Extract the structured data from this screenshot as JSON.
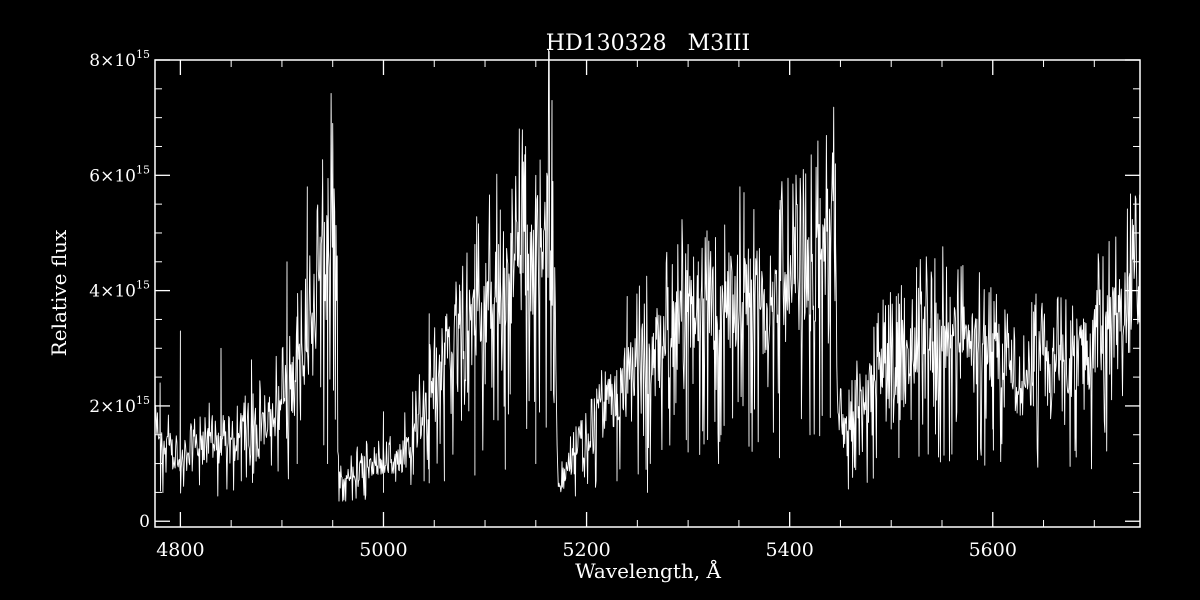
{
  "chart_data": {
    "type": "line",
    "title": "HD130328   M3III",
    "xlabel": "Wavelength, Å",
    "ylabel": "Relative flux",
    "xlim": [
      4775,
      5745
    ],
    "ylim": [
      -100000000000000.0,
      8000000000000000.0
    ],
    "xticks": [
      {
        "value": 4800,
        "label": "4800"
      },
      {
        "value": 5000,
        "label": "5000"
      },
      {
        "value": 5200,
        "label": "5200"
      },
      {
        "value": 5400,
        "label": "5400"
      },
      {
        "value": 5600,
        "label": "5600"
      }
    ],
    "yticks": [
      {
        "value": 0,
        "mant": "0",
        "exp": ""
      },
      {
        "value": 2000000000000000.0,
        "mant": "2×10",
        "exp": "15"
      },
      {
        "value": 4000000000000000.0,
        "mant": "4×10",
        "exp": "15"
      },
      {
        "value": 6000000000000000.0,
        "mant": "6×10",
        "exp": "15"
      },
      {
        "value": 8000000000000000.0,
        "mant": "8×10",
        "exp": "15"
      }
    ],
    "grid": false,
    "color": "#ffffff",
    "background": "#000000",
    "series": [
      {
        "envelope": [
          [
            4775,
            1300000000000000.0
          ],
          [
            4790,
            1250000000000000.0
          ],
          [
            4800,
            850000000000000.0
          ],
          [
            4815,
            1200000000000000.0
          ],
          [
            4830,
            1350000000000000.0
          ],
          [
            4845,
            1150000000000000.0
          ],
          [
            4860,
            1400000000000000.0
          ],
          [
            4880,
            1600000000000000.0
          ],
          [
            4900,
            2000000000000000.0
          ],
          [
            4915,
            2600000000000000.0
          ],
          [
            4930,
            3200000000000000.0
          ],
          [
            4945,
            4800000000000000.0
          ],
          [
            4953,
            5500000000000000.0
          ],
          [
            4956,
            600000000000000.0
          ],
          [
            4970,
            800000000000000.0
          ],
          [
            4985,
            950000000000000.0
          ],
          [
            5000,
            900000000000000.0
          ],
          [
            5015,
            1100000000000000.0
          ],
          [
            5030,
            1500000000000000.0
          ],
          [
            5050,
            2200000000000000.0
          ],
          [
            5070,
            2900000000000000.0
          ],
          [
            5090,
            3400000000000000.0
          ],
          [
            5110,
            4000000000000000.0
          ],
          [
            5130,
            4400000000000000.0
          ],
          [
            5150,
            4600000000000000.0
          ],
          [
            5160,
            5200000000000000.0
          ],
          [
            5165,
            5600000000000000.0
          ],
          [
            5168,
            4300000000000000.0
          ],
          [
            5172,
            500000000000000.0
          ],
          [
            5185,
            1100000000000000.0
          ],
          [
            5200,
            1300000000000000.0
          ],
          [
            5220,
            2000000000000000.0
          ],
          [
            5240,
            2500000000000000.0
          ],
          [
            5260,
            2800000000000000.0
          ],
          [
            5280,
            3100000000000000.0
          ],
          [
            5300,
            3600000000000000.0
          ],
          [
            5320,
            3300000000000000.0
          ],
          [
            5340,
            3600000000000000.0
          ],
          [
            5355,
            3900000000000000.0
          ],
          [
            5370,
            3500000000000000.0
          ],
          [
            5390,
            3800000000000000.0
          ],
          [
            5410,
            3900000000000000.0
          ],
          [
            5425,
            4200000000000000.0
          ],
          [
            5440,
            4500000000000000.0
          ],
          [
            5445,
            5000000000000000.0
          ],
          [
            5448,
            1600000000000000.0
          ],
          [
            5460,
            1700000000000000.0
          ],
          [
            5480,
            2300000000000000.0
          ],
          [
            5500,
            2600000000000000.0
          ],
          [
            5520,
            2900000000000000.0
          ],
          [
            5540,
            3200000000000000.0
          ],
          [
            5560,
            3200000000000000.0
          ],
          [
            5580,
            3000000000000000.0
          ],
          [
            5595,
            2800000000000000.0
          ],
          [
            5610,
            2400000000000000.0
          ],
          [
            5630,
            2300000000000000.0
          ],
          [
            5650,
            2700000000000000.0
          ],
          [
            5670,
            2500000000000000.0
          ],
          [
            5690,
            2900000000000000.0
          ],
          [
            5710,
            3200000000000000.0
          ],
          [
            5730,
            3600000000000000.0
          ],
          [
            5745,
            3900000000000000.0
          ]
        ],
        "spikes": [
          [
            4780,
            2400000000000000.0
          ],
          [
            4800,
            3300000000000000.0
          ],
          [
            4840,
            3000000000000000.0
          ],
          [
            4870,
            2800000000000000.0
          ],
          [
            4905,
            4500000000000000.0
          ],
          [
            4925,
            5800000000000000.0
          ],
          [
            4940,
            6000000000000000.0
          ],
          [
            4950,
            6900000000000000.0
          ],
          [
            5000,
            1900000000000000.0
          ],
          [
            5045,
            3600000000000000.0
          ],
          [
            5075,
            4100000000000000.0
          ],
          [
            5090,
            4800000000000000.0
          ],
          [
            5115,
            5400000000000000.0
          ],
          [
            5130,
            5700000000000000.0
          ],
          [
            5140,
            6500000000000000.0
          ],
          [
            5150,
            6000000000000000.0
          ],
          [
            5163,
            7100000000000000.0
          ],
          [
            5166,
            7300000000000000.0
          ],
          [
            5240,
            3900000000000000.0
          ],
          [
            5300,
            4800000000000000.0
          ],
          [
            5310,
            4500000000000000.0
          ],
          [
            5355,
            5700000000000000.0
          ],
          [
            5390,
            5400000000000000.0
          ],
          [
            5405,
            5100000000000000.0
          ],
          [
            5430,
            5600000000000000.0
          ],
          [
            5445,
            6200000000000000.0
          ],
          [
            5505,
            3900000000000000.0
          ],
          [
            5525,
            4400000000000000.0
          ],
          [
            5540,
            4200000000000000.0
          ],
          [
            5580,
            3600000000000000.0
          ],
          [
            5735,
            4300000000000000.0
          ],
          [
            5745,
            4400000000000000.0
          ]
        ],
        "dips": [
          [
            4800,
            800000000000000.0
          ],
          [
            4860,
            700000000000000.0
          ],
          [
            4915,
            1000000000000000.0
          ],
          [
            4945,
            1000000000000000.0
          ],
          [
            4975,
            600000000000000.0
          ],
          [
            5000,
            500000000000000.0
          ],
          [
            5040,
            700000000000000.0
          ],
          [
            5060,
            700000000000000.0
          ],
          [
            5090,
            800000000000000.0
          ],
          [
            5120,
            900000000000000.0
          ],
          [
            5150,
            1000000000000000.0
          ],
          [
            5230,
            700000000000000.0
          ],
          [
            5260,
            500000000000000.0
          ],
          [
            5300,
            1200000000000000.0
          ],
          [
            5330,
            1000000000000000.0
          ],
          [
            5360,
            1300000000000000.0
          ],
          [
            5390,
            1100000000000000.0
          ],
          [
            5420,
            1500000000000000.0
          ],
          [
            5440,
            1800000000000000.0
          ],
          [
            5500,
            1600000000000000.0
          ],
          [
            5600,
            1600000000000000.0
          ],
          [
            5640,
            2000000000000000.0
          ]
        ]
      }
    ]
  }
}
